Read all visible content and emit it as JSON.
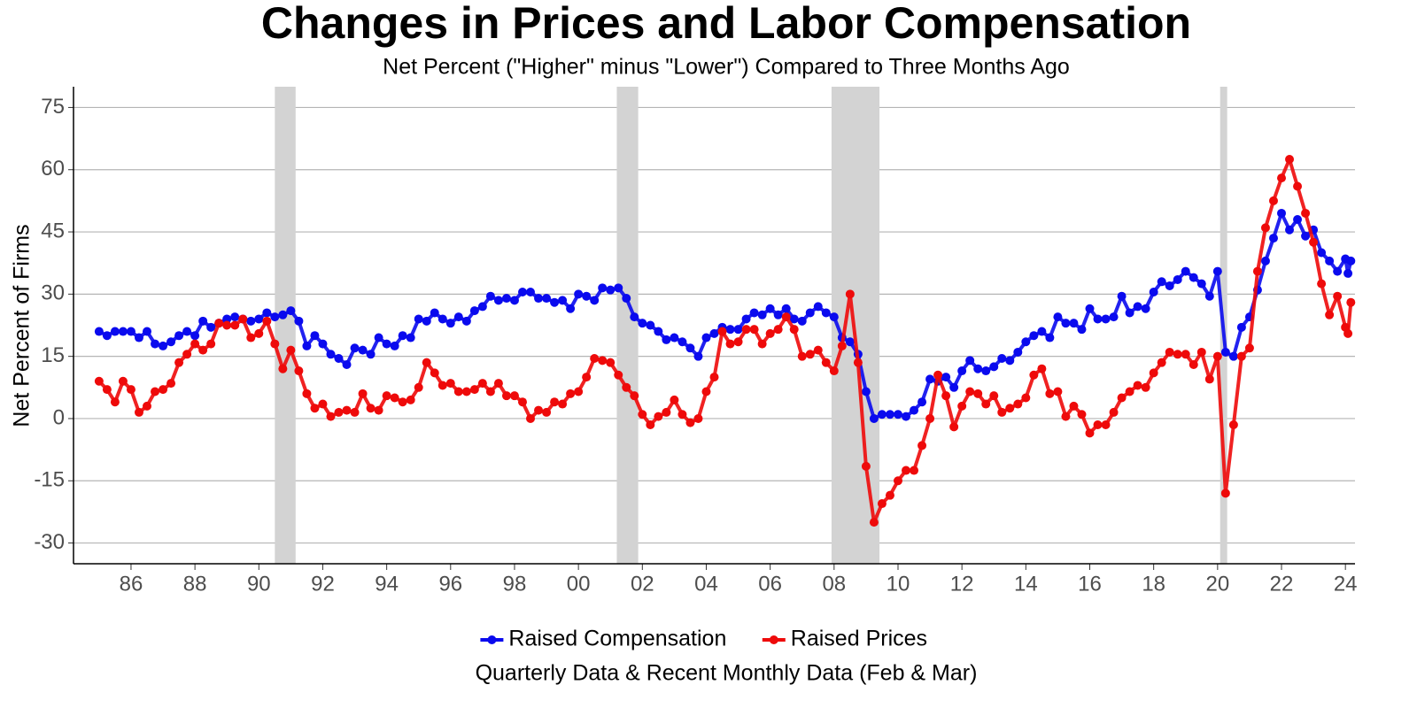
{
  "chart_data": {
    "type": "line",
    "title": "Changes in Prices and Labor Compensation",
    "subtitle": "Net Percent (\"Higher\" minus \"Lower\") Compared to Three Months Ago",
    "y_label": "Net Percent of Firms",
    "caption": "Quarterly Data & Recent Monthly Data (Feb & Mar)",
    "x": [
      1985,
      1985.25,
      1985.5,
      1985.75,
      1986,
      1986.25,
      1986.5,
      1986.75,
      1987,
      1987.25,
      1987.5,
      1987.75,
      1988,
      1988.25,
      1988.5,
      1988.75,
      1989,
      1989.25,
      1989.5,
      1989.75,
      1990,
      1990.25,
      1990.5,
      1990.75,
      1991,
      1991.25,
      1991.5,
      1991.75,
      1992,
      1992.25,
      1992.5,
      1992.75,
      1993,
      1993.25,
      1993.5,
      1993.75,
      1994,
      1994.25,
      1994.5,
      1994.75,
      1995,
      1995.25,
      1995.5,
      1995.75,
      1996,
      1996.25,
      1996.5,
      1996.75,
      1997,
      1997.25,
      1997.5,
      1997.75,
      1998,
      1998.25,
      1998.5,
      1998.75,
      1999,
      1999.25,
      1999.5,
      1999.75,
      2000,
      2000.25,
      2000.5,
      2000.75,
      2001,
      2001.25,
      2001.5,
      2001.75,
      2002,
      2002.25,
      2002.5,
      2002.75,
      2003,
      2003.25,
      2003.5,
      2003.75,
      2004,
      2004.25,
      2004.5,
      2004.75,
      2005,
      2005.25,
      2005.5,
      2005.75,
      2006,
      2006.25,
      2006.5,
      2006.75,
      2007,
      2007.25,
      2007.5,
      2007.75,
      2008,
      2008.25,
      2008.5,
      2008.75,
      2009,
      2009.25,
      2009.5,
      2009.75,
      2010,
      2010.25,
      2010.5,
      2010.75,
      2011,
      2011.25,
      2011.5,
      2011.75,
      2012,
      2012.25,
      2012.5,
      2012.75,
      2013,
      2013.25,
      2013.5,
      2013.75,
      2014,
      2014.25,
      2014.5,
      2014.75,
      2015,
      2015.25,
      2015.5,
      2015.75,
      2016,
      2016.25,
      2016.5,
      2016.75,
      2017,
      2017.25,
      2017.5,
      2017.75,
      2018,
      2018.25,
      2018.5,
      2018.75,
      2019,
      2019.25,
      2019.5,
      2019.75,
      2020,
      2020.25,
      2020.5,
      2020.75,
      2021,
      2021.25,
      2021.5,
      2021.75,
      2022,
      2022.25,
      2022.5,
      2022.75,
      2023,
      2023.25,
      2023.5,
      2023.75,
      2024,
      2024.08,
      2024.17
    ],
    "series": [
      {
        "name": "Raised Compensation",
        "color": "#0a0aee",
        "values": [
          21,
          20,
          21,
          21,
          21,
          19.5,
          21,
          18,
          17.5,
          18.5,
          20,
          21,
          20,
          23.5,
          22,
          23,
          24,
          24.5,
          24,
          23.5,
          24,
          25.5,
          24.5,
          25,
          26,
          23.5,
          17.5,
          20,
          18,
          15.5,
          14.5,
          13,
          17,
          16.5,
          15.5,
          19.5,
          18,
          17.5,
          20,
          19.5,
          24,
          23.5,
          25.5,
          24,
          23,
          24.5,
          23.5,
          26,
          27,
          29.5,
          28.5,
          29,
          28.5,
          30.5,
          30.5,
          29,
          29,
          28,
          28.5,
          26.5,
          30,
          29.5,
          28.5,
          31.5,
          31,
          31.5,
          29,
          24.5,
          23,
          22.5,
          21,
          19,
          19.5,
          18.5,
          17,
          15,
          19.5,
          20.5,
          22,
          21.5,
          21.5,
          24,
          25.5,
          25,
          26.5,
          25,
          26.5,
          24,
          23.5,
          25.5,
          27,
          25.5,
          24.5,
          19.5,
          18.5,
          15.5,
          6.5,
          0,
          1,
          1,
          1,
          0.5,
          2,
          4,
          9.5,
          9,
          10,
          7.5,
          11.5,
          14,
          12,
          11.5,
          12.5,
          14.5,
          14,
          16,
          18.5,
          20,
          21,
          19.5,
          24.5,
          23,
          23,
          21.5,
          26.5,
          24,
          24,
          24.5,
          29.5,
          25.5,
          27,
          26.5,
          30.5,
          33,
          32,
          33.5,
          35.5,
          34,
          32.5,
          29.5,
          35.5,
          16,
          15,
          22,
          24.5,
          31,
          38,
          43.5,
          49.5,
          45.5,
          48,
          44,
          45.5,
          40,
          38,
          35.5,
          38.5,
          35,
          38
        ]
      },
      {
        "name": "Raised Prices",
        "color": "#ee0a0a",
        "values": [
          9,
          7,
          4,
          9,
          7,
          1.5,
          3,
          6.5,
          7,
          8.5,
          13.5,
          15.5,
          18,
          16.5,
          18,
          23,
          22.5,
          22.5,
          24,
          19.5,
          20.5,
          23.5,
          18,
          12,
          16.5,
          11.5,
          6,
          2.5,
          3.5,
          0.5,
          1.5,
          2,
          1.5,
          6,
          2.5,
          2,
          5.5,
          5,
          4,
          4.5,
          7.5,
          13.5,
          11,
          8,
          8.5,
          6.5,
          6.5,
          7,
          8.5,
          6.5,
          8.5,
          5.5,
          5.5,
          4,
          0,
          2,
          1.5,
          4,
          3.5,
          6,
          6.5,
          10,
          14.5,
          14,
          13.5,
          10.5,
          7.5,
          5.5,
          1,
          -1.5,
          0.5,
          1.5,
          4.5,
          1,
          -1,
          0,
          6.5,
          10,
          21,
          18,
          18.5,
          21.5,
          21.5,
          18,
          20.5,
          21.5,
          24.5,
          21.5,
          15,
          15.5,
          16.5,
          13.5,
          11.5,
          17.5,
          30,
          13.5,
          -11.5,
          -25,
          -20.5,
          -18.5,
          -15,
          -12.5,
          -12.5,
          -6.5,
          0,
          10.5,
          5.5,
          -2,
          3,
          6.5,
          6,
          3.5,
          5.5,
          1.5,
          2.5,
          3.5,
          5,
          10.5,
          12,
          6,
          6.5,
          0.5,
          3,
          1,
          -3.5,
          -1.5,
          -1.5,
          1.5,
          5,
          6.5,
          8,
          7.5,
          11,
          13.5,
          16,
          15.5,
          15.5,
          13,
          16,
          9.5,
          15,
          -18,
          -1.5,
          15,
          17,
          35.5,
          46,
          52.5,
          58,
          62.5,
          56,
          49.5,
          42.5,
          32.5,
          25,
          29.5,
          22,
          20.5,
          28
        ]
      }
    ],
    "shaded_periods": [
      [
        1990.5,
        1991.15
      ],
      [
        2001.2,
        2001.87
      ],
      [
        2007.92,
        2009.42
      ],
      [
        2020.08,
        2020.3
      ]
    ],
    "xlim": [
      1984.2,
      2024.3
    ],
    "xticks": [
      {
        "value": 1986,
        "label": "86"
      },
      {
        "value": 1988,
        "label": "88"
      },
      {
        "value": 1990,
        "label": "90"
      },
      {
        "value": 1992,
        "label": "92"
      },
      {
        "value": 1994,
        "label": "94"
      },
      {
        "value": 1996,
        "label": "96"
      },
      {
        "value": 1998,
        "label": "98"
      },
      {
        "value": 2000,
        "label": "00"
      },
      {
        "value": 2002,
        "label": "02"
      },
      {
        "value": 2004,
        "label": "04"
      },
      {
        "value": 2006,
        "label": "06"
      },
      {
        "value": 2008,
        "label": "08"
      },
      {
        "value": 2010,
        "label": "10"
      },
      {
        "value": 2012,
        "label": "12"
      },
      {
        "value": 2014,
        "label": "14"
      },
      {
        "value": 2016,
        "label": "16"
      },
      {
        "value": 2018,
        "label": "18"
      },
      {
        "value": 2020,
        "label": "20"
      },
      {
        "value": 2022,
        "label": "22"
      },
      {
        "value": 2024,
        "label": "24"
      }
    ],
    "ylim": [
      -35,
      80
    ],
    "yticks": [
      -30,
      -15,
      0,
      15,
      30,
      45,
      60,
      75
    ],
    "grid": true,
    "legend": "bottom"
  }
}
